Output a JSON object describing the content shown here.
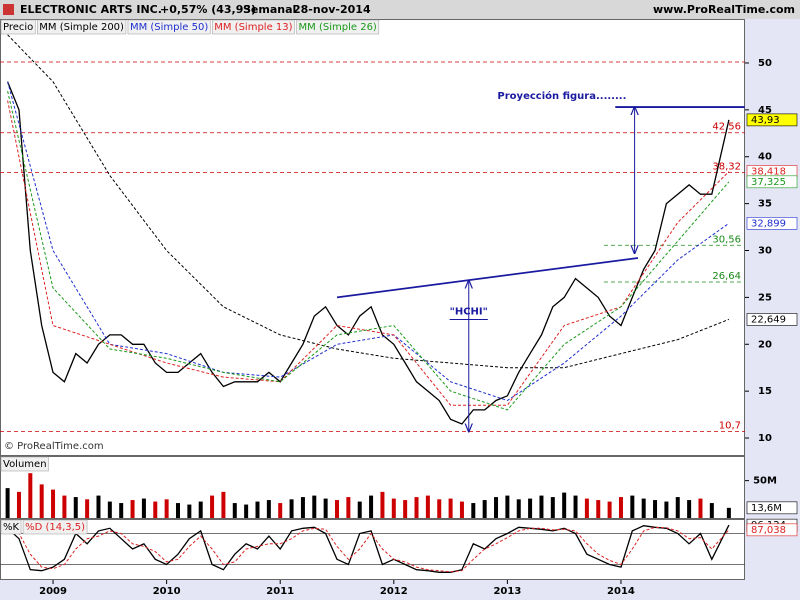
{
  "header": {
    "title": "ELECTRONIC ARTS INC.",
    "change": "+0,57% (43,93)",
    "period": "Semanal",
    "date": "28-nov-2014",
    "site": "www.ProRealTime.com"
  },
  "chart_data": [
    {
      "type": "line",
      "watermark": "© ProRealTime.com",
      "x": [
        2008.6,
        2008.7,
        2008.8,
        2008.9,
        2009.0,
        2009.1,
        2009.2,
        2009.3,
        2009.4,
        2009.5,
        2009.6,
        2009.7,
        2009.8,
        2009.9,
        2010.0,
        2010.1,
        2010.2,
        2010.3,
        2010.4,
        2010.5,
        2010.6,
        2010.7,
        2010.8,
        2010.9,
        2011.0,
        2011.1,
        2011.2,
        2011.3,
        2011.4,
        2011.5,
        2011.6,
        2011.7,
        2011.8,
        2011.9,
        2012.0,
        2012.1,
        2012.2,
        2012.3,
        2012.4,
        2012.5,
        2012.6,
        2012.7,
        2012.8,
        2012.9,
        2013.0,
        2013.1,
        2013.2,
        2013.3,
        2013.4,
        2013.5,
        2013.6,
        2013.7,
        2013.8,
        2013.9,
        2014.0,
        2014.1,
        2014.2,
        2014.3,
        2014.4,
        2014.5,
        2014.6,
        2014.7,
        2014.8,
        2014.95
      ],
      "xlim": [
        2008.533,
        2015.092
      ],
      "xticks": [
        2009,
        2010,
        2011,
        2012,
        2013,
        2014
      ],
      "ylim": [
        8.19,
        54.69
      ],
      "yticks": [
        10,
        15,
        20,
        25,
        30,
        35,
        40,
        45,
        50
      ],
      "series": [
        {
          "name": "Precio",
          "color": "#000000",
          "values": [
            48,
            45,
            30,
            22,
            17,
            16,
            19,
            18,
            20,
            21,
            21,
            20,
            20,
            18,
            17,
            17,
            18,
            19,
            17,
            15.5,
            16,
            16,
            16,
            17,
            16,
            18,
            20,
            23,
            24,
            22,
            21,
            23,
            24,
            21,
            20,
            18,
            16,
            15,
            14,
            12,
            11.5,
            13,
            13,
            14,
            14.5,
            17,
            19,
            21,
            24,
            25,
            27,
            26,
            25,
            23,
            22,
            25,
            28,
            30,
            35,
            36,
            37,
            36,
            36,
            43.93
          ]
        },
        {
          "name": "MM (Simple 200)",
          "color": "#000000",
          "dash": true,
          "x": [
            2008.6,
            2009,
            2009.5,
            2010,
            2010.5,
            2011,
            2011.5,
            2012,
            2012.5,
            2013,
            2013.5,
            2014,
            2014.5,
            2014.95
          ],
          "values": [
            53,
            48,
            38,
            30,
            24,
            21,
            19.5,
            18.5,
            18,
            17.5,
            17.5,
            19,
            20.5,
            22.649
          ]
        },
        {
          "name": "MM (Simple 50)",
          "color": "#1f2fd0",
          "dash": true,
          "x": [
            2008.6,
            2009,
            2009.5,
            2010,
            2010.5,
            2011,
            2011.5,
            2012,
            2012.5,
            2013,
            2013.5,
            2014,
            2014.5,
            2014.95
          ],
          "values": [
            48,
            30,
            20,
            19,
            17,
            16.5,
            20,
            21,
            16,
            14,
            18,
            23,
            29,
            32.899
          ]
        },
        {
          "name": "MM (Simple 13)",
          "color": "#dd2222",
          "dash": true,
          "x": [
            2008.6,
            2009,
            2009.5,
            2010,
            2010.5,
            2011,
            2011.5,
            2012,
            2012.5,
            2013,
            2013.5,
            2014,
            2014.5,
            2014.95
          ],
          "values": [
            46,
            22,
            20,
            18,
            16.5,
            16,
            22,
            21,
            13.5,
            13.5,
            22,
            24,
            33,
            38.418
          ]
        },
        {
          "name": "MM (Simple 26)",
          "color": "#1a9a1a",
          "dash": true,
          "x": [
            2008.6,
            2009,
            2009.5,
            2010,
            2010.5,
            2011,
            2011.5,
            2012,
            2012.5,
            2013,
            2013.5,
            2014,
            2014.5,
            2014.95
          ],
          "values": [
            47,
            26,
            19.5,
            18.5,
            17,
            16,
            21,
            22,
            15,
            13,
            20,
            24,
            31,
            37.325
          ]
        }
      ],
      "levels": [
        {
          "value": 50.1,
          "color": "#cc0000"
        },
        {
          "value": 42.56,
          "label": "42,56",
          "color": "#cc0000"
        },
        {
          "value": 38.32,
          "label": "38,32",
          "color": "#cc0000"
        },
        {
          "value": 30.56,
          "label": "30,56",
          "color": "#1a8a1a",
          "from": 2013.85
        },
        {
          "value": 26.64,
          "label": "26,64",
          "color": "#1a8a1a",
          "from": 2013.85
        },
        {
          "value": 10.7,
          "label": "10,7",
          "color": "#cc0000"
        }
      ],
      "tags": [
        {
          "value": 43.93,
          "label": "43,93",
          "color": "#000000",
          "bg": "#ffff00"
        },
        {
          "value": 38.418,
          "label": "38,418",
          "color": "#dd2222",
          "bg": "#ffffff"
        },
        {
          "value": 37.325,
          "label": "37,325",
          "color": "#1a9a1a",
          "bg": "#ffffff"
        },
        {
          "value": 32.899,
          "label": "32,899",
          "color": "#1f2fd0",
          "bg": "#ffffff"
        },
        {
          "value": 22.649,
          "label": "22,649",
          "color": "#000000",
          "bg": "#ffffff"
        }
      ],
      "annotations": [
        {
          "kind": "line",
          "x": [
            2011.5,
            2014.15
          ],
          "y": [
            25,
            29.2
          ]
        },
        {
          "kind": "arrow",
          "x": [
            2012.66,
            2012.66
          ],
          "y": [
            10.7,
            26.8
          ]
        },
        {
          "kind": "arrow",
          "x": [
            2014.12,
            2014.12
          ],
          "y": [
            29.7,
            45.3
          ]
        },
        {
          "kind": "line",
          "x": [
            2013.95,
            2015.09
          ],
          "y": [
            45.3,
            45.3
          ]
        },
        {
          "kind": "text",
          "text": "\"HCHI\"",
          "x": 2012.66,
          "y": 23.5
        },
        {
          "kind": "text",
          "text": "Proyección figura........",
          "x": 2013.48,
          "y": 46.5
        }
      ]
    },
    {
      "type": "bar",
      "title": "Volumen",
      "up_color": "#000000",
      "down_color": "#cc0000",
      "ylim": [
        0,
        83
      ],
      "yticks": [
        {
          "value": 50,
          "label": "50M"
        }
      ],
      "values": [
        40,
        35,
        60,
        45,
        38,
        30,
        28,
        25,
        30,
        22,
        20,
        24,
        26,
        22,
        25,
        20,
        18,
        22,
        30,
        35,
        20,
        18,
        22,
        24,
        20,
        25,
        28,
        30,
        26,
        24,
        28,
        22,
        30,
        35,
        26,
        24,
        28,
        30,
        25,
        26,
        22,
        20,
        24,
        28,
        30,
        25,
        26,
        30,
        28,
        34,
        30,
        26,
        24,
        22,
        28,
        30,
        26,
        24,
        22,
        28,
        24,
        26,
        20,
        13.6
      ],
      "tags": [
        {
          "value": 13.6,
          "label": "13,6M",
          "color": "#000000",
          "bg": "#ffffff"
        }
      ]
    },
    {
      "type": "line",
      "ylim": [
        -8,
        108
      ],
      "levels": [
        80,
        20
      ],
      "series": [
        {
          "name": "%K",
          "color": "#000000",
          "values": [
            90,
            70,
            10,
            8,
            15,
            30,
            80,
            60,
            85,
            90,
            70,
            50,
            60,
            30,
            20,
            40,
            70,
            85,
            20,
            10,
            40,
            60,
            50,
            75,
            50,
            85,
            90,
            92,
            80,
            30,
            20,
            80,
            85,
            20,
            30,
            20,
            10,
            8,
            5,
            5,
            10,
            60,
            50,
            70,
            80,
            92,
            90,
            88,
            85,
            90,
            80,
            40,
            30,
            20,
            15,
            85,
            95,
            92,
            90,
            80,
            60,
            80,
            30,
            96.124
          ]
        },
        {
          "name": "%D (14,3,5)",
          "color": "#dd2222",
          "dash": true,
          "values": [
            85,
            80,
            40,
            15,
            12,
            20,
            50,
            70,
            75,
            85,
            80,
            60,
            55,
            45,
            25,
            30,
            55,
            75,
            50,
            20,
            25,
            50,
            55,
            60,
            60,
            70,
            85,
            90,
            88,
            55,
            30,
            50,
            80,
            50,
            30,
            25,
            15,
            10,
            8,
            6,
            8,
            30,
            50,
            60,
            72,
            85,
            90,
            90,
            87,
            88,
            85,
            60,
            40,
            28,
            20,
            50,
            85,
            92,
            91,
            85,
            70,
            72,
            50,
            87.038
          ]
        }
      ],
      "tags": [
        {
          "value": 96.124,
          "label": "96,124",
          "color": "#000000",
          "bg": "#ffffff"
        },
        {
          "value": 87.038,
          "label": "87,038",
          "color": "#dd2222",
          "bg": "#ffffff"
        }
      ]
    }
  ]
}
